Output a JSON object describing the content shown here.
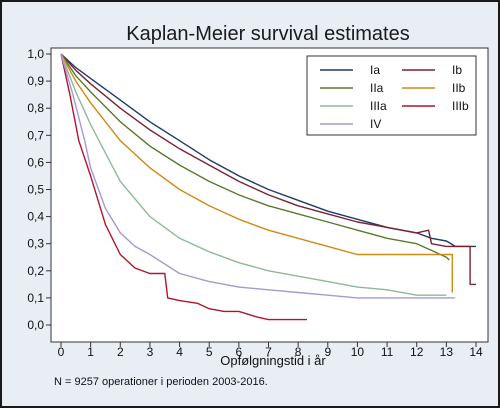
{
  "chart_data": {
    "type": "line",
    "title": "Kaplan-Meier survival estimates",
    "xlabel": "Opfølgningstid i år",
    "ylabel": "",
    "note": "N = 9257 operationer i perioden 2003-2016.",
    "xlim": [
      0,
      14
    ],
    "ylim": [
      0,
      1
    ],
    "x_ticks": [
      0,
      1,
      2,
      3,
      4,
      5,
      6,
      7,
      8,
      9,
      10,
      11,
      12,
      13,
      14
    ],
    "y_ticks": [
      "0,0",
      "0,1",
      "0,2",
      "0,3",
      "0,4",
      "0,5",
      "0,6",
      "0,7",
      "0,8",
      "0,9",
      "1,0"
    ],
    "grid": false,
    "legend_position": "top-right",
    "series": [
      {
        "name": "Ia",
        "color": "#1f3a6e",
        "points": [
          [
            0,
            1.0
          ],
          [
            0.5,
            0.95
          ],
          [
            1,
            0.91
          ],
          [
            2,
            0.83
          ],
          [
            3,
            0.75
          ],
          [
            4,
            0.68
          ],
          [
            5,
            0.61
          ],
          [
            6,
            0.55
          ],
          [
            7,
            0.5
          ],
          [
            8,
            0.46
          ],
          [
            9,
            0.42
          ],
          [
            10,
            0.39
          ],
          [
            11,
            0.36
          ],
          [
            12,
            0.34
          ],
          [
            12.5,
            0.32
          ],
          [
            13,
            0.31
          ],
          [
            13.3,
            0.29
          ],
          [
            14,
            0.29
          ]
        ]
      },
      {
        "name": "Ib",
        "color": "#7a2233",
        "points": [
          [
            0,
            1.0
          ],
          [
            0.5,
            0.94
          ],
          [
            1,
            0.89
          ],
          [
            2,
            0.8
          ],
          [
            3,
            0.72
          ],
          [
            4,
            0.65
          ],
          [
            5,
            0.59
          ],
          [
            6,
            0.53
          ],
          [
            7,
            0.48
          ],
          [
            8,
            0.44
          ],
          [
            9,
            0.41
          ],
          [
            10,
            0.38
          ],
          [
            11,
            0.36
          ],
          [
            12,
            0.34
          ],
          [
            12.4,
            0.35
          ],
          [
            12.5,
            0.3
          ],
          [
            13,
            0.29
          ],
          [
            13.8,
            0.29
          ],
          [
            13.8,
            0.15
          ],
          [
            14,
            0.15
          ]
        ]
      },
      {
        "name": "IIa",
        "color": "#5a7a2e",
        "points": [
          [
            0,
            1.0
          ],
          [
            0.5,
            0.92
          ],
          [
            1,
            0.86
          ],
          [
            2,
            0.75
          ],
          [
            3,
            0.66
          ],
          [
            4,
            0.59
          ],
          [
            5,
            0.53
          ],
          [
            6,
            0.48
          ],
          [
            7,
            0.44
          ],
          [
            8,
            0.41
          ],
          [
            9,
            0.38
          ],
          [
            10,
            0.35
          ],
          [
            11,
            0.32
          ],
          [
            12,
            0.3
          ],
          [
            12.6,
            0.27
          ],
          [
            13,
            0.25
          ],
          [
            13.1,
            0.24
          ]
        ]
      },
      {
        "name": "IIb",
        "color": "#d08a16",
        "points": [
          [
            0,
            1.0
          ],
          [
            0.5,
            0.9
          ],
          [
            1,
            0.82
          ],
          [
            2,
            0.68
          ],
          [
            3,
            0.58
          ],
          [
            4,
            0.5
          ],
          [
            5,
            0.44
          ],
          [
            6,
            0.39
          ],
          [
            7,
            0.35
          ],
          [
            8,
            0.32
          ],
          [
            9,
            0.29
          ],
          [
            10,
            0.26
          ],
          [
            11,
            0.26
          ],
          [
            12,
            0.26
          ],
          [
            13,
            0.26
          ],
          [
            13.2,
            0.26
          ],
          [
            13.2,
            0.12
          ]
        ]
      },
      {
        "name": "IIIa",
        "color": "#8fb89a",
        "points": [
          [
            0,
            1.0
          ],
          [
            0.5,
            0.86
          ],
          [
            1,
            0.74
          ],
          [
            2,
            0.53
          ],
          [
            3,
            0.4
          ],
          [
            4,
            0.32
          ],
          [
            5,
            0.27
          ],
          [
            6,
            0.23
          ],
          [
            7,
            0.2
          ],
          [
            8,
            0.18
          ],
          [
            9,
            0.16
          ],
          [
            10,
            0.14
          ],
          [
            11,
            0.13
          ],
          [
            12,
            0.11
          ],
          [
            13,
            0.11
          ]
        ]
      },
      {
        "name": "IIIb",
        "color": "#b3132c",
        "points": [
          [
            0,
            1.0
          ],
          [
            0.3,
            0.85
          ],
          [
            0.6,
            0.68
          ],
          [
            1,
            0.55
          ],
          [
            1.5,
            0.37
          ],
          [
            2,
            0.26
          ],
          [
            2.5,
            0.21
          ],
          [
            3,
            0.19
          ],
          [
            3.5,
            0.19
          ],
          [
            3.6,
            0.1
          ],
          [
            4,
            0.09
          ],
          [
            4.6,
            0.08
          ],
          [
            5,
            0.06
          ],
          [
            5.5,
            0.05
          ],
          [
            6,
            0.05
          ],
          [
            6.6,
            0.03
          ],
          [
            7,
            0.02
          ],
          [
            8,
            0.02
          ],
          [
            8.3,
            0.02
          ]
        ]
      },
      {
        "name": "IV",
        "color": "#a898d0",
        "points": [
          [
            0,
            1.0
          ],
          [
            0.4,
            0.85
          ],
          [
            0.8,
            0.68
          ],
          [
            1,
            0.58
          ],
          [
            1.5,
            0.43
          ],
          [
            2,
            0.34
          ],
          [
            2.5,
            0.29
          ],
          [
            3,
            0.26
          ],
          [
            4,
            0.19
          ],
          [
            5,
            0.16
          ],
          [
            6,
            0.14
          ],
          [
            7,
            0.13
          ],
          [
            8,
            0.12
          ],
          [
            9,
            0.11
          ],
          [
            10,
            0.1
          ],
          [
            11,
            0.1
          ],
          [
            12,
            0.1
          ],
          [
            13,
            0.1
          ],
          [
            13.3,
            0.1
          ]
        ]
      }
    ]
  }
}
